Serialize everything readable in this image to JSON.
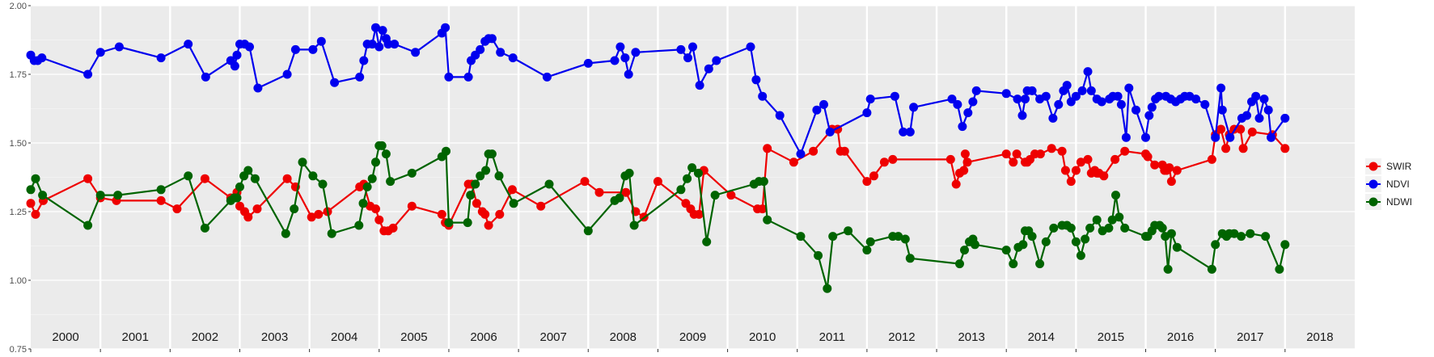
{
  "chart_data": {
    "type": "line",
    "title": "",
    "xlabel": "",
    "ylabel": "",
    "xlim": [
      2000.0,
      2019.0
    ],
    "ylim": [
      0.75,
      2.0
    ],
    "y_ticks": [
      "0.75",
      "1.00",
      "1.25",
      "1.50",
      "1.75",
      "2.00"
    ],
    "x_tick_labels": [
      "2000",
      "2001",
      "2002",
      "2003",
      "2004",
      "2005",
      "2006",
      "2007",
      "2008",
      "2009",
      "2010",
      "2011",
      "2012",
      "2013",
      "2014",
      "2015",
      "2016",
      "2017",
      "2018"
    ],
    "grid": true,
    "legend_position": "right",
    "series": [
      {
        "name": "SWIR",
        "color": "#ee0000",
        "x": [
          2000.0,
          2000.07,
          2000.18,
          2000.82,
          2001.0,
          2001.23,
          2001.87,
          2002.1,
          2002.5,
          2002.87,
          2002.96,
          2003.0,
          2003.07,
          2003.12,
          2003.25,
          2003.68,
          2003.8,
          2004.03,
          2004.13,
          2004.26,
          2004.72,
          2004.78,
          2004.87,
          2004.95,
          2005.0,
          2005.07,
          2005.13,
          2005.2,
          2005.47,
          2005.9,
          2005.95,
          2006.0,
          2006.28,
          2006.33,
          2006.4,
          2006.48,
          2006.52,
          2006.57,
          2006.73,
          2006.91,
          2007.32,
          2007.95,
          2008.16,
          2008.54,
          2008.68,
          2008.8,
          2009.0,
          2009.4,
          2009.47,
          2009.52,
          2009.59,
          2009.66,
          2010.05,
          2010.43,
          2010.5,
          2010.57,
          2010.95,
          2011.23,
          2011.5,
          2011.58,
          2011.62,
          2011.68,
          2012.0,
          2012.1,
          2012.25,
          2012.37,
          2013.2,
          2013.28,
          2013.33,
          2013.39,
          2013.41,
          2013.44,
          2014.0,
          2014.1,
          2014.15,
          2014.27,
          2014.3,
          2014.34,
          2014.41,
          2014.49,
          2014.65,
          2014.8,
          2014.85,
          2014.93,
          2015.0,
          2015.07,
          2015.17,
          2015.22,
          2015.27,
          2015.3,
          2015.33,
          2015.4,
          2015.56,
          2015.7,
          2016.0,
          2016.03,
          2016.13,
          2016.24,
          2016.27,
          2016.3,
          2016.34,
          2016.37,
          2016.45,
          2016.95,
          2017.0,
          2017.08,
          2017.15,
          2017.2,
          2017.27,
          2017.36,
          2017.4,
          2017.53,
          2017.82,
          2018.0
        ],
        "values": [
          1.28,
          1.24,
          1.29,
          1.37,
          1.3,
          1.29,
          1.29,
          1.26,
          1.37,
          1.3,
          1.32,
          1.27,
          1.25,
          1.23,
          1.26,
          1.37,
          1.34,
          1.23,
          1.24,
          1.25,
          1.34,
          1.35,
          1.27,
          1.26,
          1.22,
          1.18,
          1.18,
          1.19,
          1.27,
          1.24,
          1.21,
          1.2,
          1.35,
          1.35,
          1.28,
          1.25,
          1.24,
          1.2,
          1.24,
          1.33,
          1.27,
          1.36,
          1.32,
          1.32,
          1.25,
          1.23,
          1.36,
          1.28,
          1.26,
          1.24,
          1.24,
          1.4,
          1.31,
          1.26,
          1.26,
          1.48,
          1.43,
          1.47,
          1.55,
          1.55,
          1.47,
          1.47,
          1.36,
          1.38,
          1.43,
          1.44,
          1.44,
          1.35,
          1.39,
          1.4,
          1.46,
          1.43,
          1.46,
          1.43,
          1.46,
          1.43,
          1.43,
          1.44,
          1.46,
          1.46,
          1.48,
          1.47,
          1.4,
          1.36,
          1.4,
          1.43,
          1.44,
          1.39,
          1.4,
          1.39,
          1.39,
          1.38,
          1.44,
          1.47,
          1.46,
          1.45,
          1.42,
          1.42,
          1.4,
          1.4,
          1.41,
          1.36,
          1.4,
          1.44,
          1.53,
          1.55,
          1.48,
          1.53,
          1.55,
          1.55,
          1.48,
          1.54,
          1.53,
          1.48
        ]
      },
      {
        "name": "NDVI",
        "color": "#0000ee",
        "x": [
          2000.0,
          2000.05,
          2000.1,
          2000.16,
          2000.82,
          2001.0,
          2001.27,
          2001.87,
          2002.26,
          2002.51,
          2002.87,
          2002.93,
          2002.96,
          2003.0,
          2003.07,
          2003.14,
          2003.26,
          2003.68,
          2003.8,
          2004.05,
          2004.17,
          2004.36,
          2004.72,
          2004.78,
          2004.83,
          2004.9,
          2004.95,
          2005.0,
          2005.05,
          2005.1,
          2005.13,
          2005.22,
          2005.52,
          2005.9,
          2005.95,
          2006.0,
          2006.28,
          2006.32,
          2006.38,
          2006.45,
          2006.52,
          2006.57,
          2006.62,
          2006.74,
          2006.92,
          2007.41,
          2008.0,
          2008.38,
          2008.46,
          2008.53,
          2008.58,
          2008.68,
          2009.33,
          2009.43,
          2009.5,
          2009.6,
          2009.73,
          2009.84,
          2010.33,
          2010.41,
          2010.5,
          2010.75,
          2011.05,
          2011.28,
          2011.38,
          2011.47,
          2012.0,
          2012.05,
          2012.4,
          2012.52,
          2012.62,
          2012.67,
          2013.22,
          2013.3,
          2013.37,
          2013.45,
          2013.52,
          2013.57,
          2014.0,
          2014.16,
          2014.23,
          2014.27,
          2014.3,
          2014.37,
          2014.48,
          2014.57,
          2014.67,
          2014.75,
          2014.82,
          2014.87,
          2014.93,
          2015.0,
          2015.09,
          2015.17,
          2015.22,
          2015.3,
          2015.37,
          2015.48,
          2015.53,
          2015.6,
          2015.65,
          2015.72,
          2015.76,
          2015.86,
          2016.0,
          2016.05,
          2016.09,
          2016.14,
          2016.19,
          2016.29,
          2016.36,
          2016.43,
          2016.5,
          2016.56,
          2016.63,
          2016.72,
          2016.85,
          2017.0,
          2017.08,
          2017.1,
          2017.21,
          2017.38,
          2017.45,
          2017.52,
          2017.58,
          2017.63,
          2017.7,
          2017.76,
          2017.8,
          2018.0
        ],
        "values": [
          1.82,
          1.8,
          1.8,
          1.81,
          1.75,
          1.83,
          1.85,
          1.81,
          1.86,
          1.74,
          1.8,
          1.78,
          1.82,
          1.86,
          1.86,
          1.85,
          1.7,
          1.75,
          1.84,
          1.84,
          1.87,
          1.72,
          1.74,
          1.8,
          1.86,
          1.86,
          1.92,
          1.85,
          1.91,
          1.88,
          1.86,
          1.86,
          1.83,
          1.9,
          1.92,
          1.74,
          1.74,
          1.8,
          1.82,
          1.84,
          1.87,
          1.88,
          1.88,
          1.83,
          1.81,
          1.74,
          1.79,
          1.8,
          1.85,
          1.81,
          1.75,
          1.83,
          1.84,
          1.81,
          1.85,
          1.71,
          1.77,
          1.8,
          1.85,
          1.73,
          1.67,
          1.6,
          1.46,
          1.62,
          1.64,
          1.54,
          1.61,
          1.66,
          1.67,
          1.54,
          1.54,
          1.63,
          1.66,
          1.64,
          1.56,
          1.61,
          1.65,
          1.69,
          1.68,
          1.66,
          1.6,
          1.66,
          1.69,
          1.69,
          1.66,
          1.67,
          1.59,
          1.64,
          1.69,
          1.71,
          1.65,
          1.67,
          1.69,
          1.76,
          1.69,
          1.66,
          1.65,
          1.66,
          1.67,
          1.67,
          1.64,
          1.52,
          1.7,
          1.62,
          1.52,
          1.6,
          1.63,
          1.66,
          1.67,
          1.67,
          1.66,
          1.65,
          1.66,
          1.67,
          1.67,
          1.66,
          1.64,
          1.52,
          1.7,
          1.62,
          1.52,
          1.59,
          1.6,
          1.65,
          1.67,
          1.59,
          1.66,
          1.62,
          1.52,
          1.59
        ]
      },
      {
        "name": "NDWI",
        "color": "#006400",
        "x": [
          2000.0,
          2000.07,
          2000.17,
          2000.82,
          2001.0,
          2001.25,
          2001.87,
          2002.26,
          2002.5,
          2002.87,
          2002.92,
          2002.96,
          2003.0,
          2003.06,
          2003.12,
          2003.22,
          2003.66,
          2003.78,
          2003.9,
          2004.05,
          2004.19,
          2004.32,
          2004.71,
          2004.77,
          2004.83,
          2004.9,
          2004.95,
          2005.0,
          2005.04,
          2005.1,
          2005.16,
          2005.47,
          2005.9,
          2005.96,
          2006.0,
          2006.27,
          2006.31,
          2006.38,
          2006.45,
          2006.53,
          2006.57,
          2006.62,
          2006.72,
          2006.93,
          2007.44,
          2008.0,
          2008.38,
          2008.45,
          2008.53,
          2008.59,
          2008.66,
          2009.33,
          2009.42,
          2009.49,
          2009.58,
          2009.7,
          2009.82,
          2010.38,
          2010.45,
          2010.52,
          2010.57,
          2011.05,
          2011.3,
          2011.43,
          2011.51,
          2011.73,
          2012.0,
          2012.05,
          2012.37,
          2012.45,
          2012.55,
          2012.62,
          2013.33,
          2013.4,
          2013.47,
          2013.52,
          2013.55,
          2014.0,
          2014.1,
          2014.17,
          2014.24,
          2014.27,
          2014.32,
          2014.37,
          2014.48,
          2014.57,
          2014.68,
          2014.8,
          2014.87,
          2014.93,
          2015.0,
          2015.07,
          2015.13,
          2015.2,
          2015.3,
          2015.38,
          2015.47,
          2015.52,
          2015.57,
          2015.62,
          2015.7,
          2016.0,
          2016.03,
          2016.09,
          2016.13,
          2016.2,
          2016.24,
          2016.28,
          2016.32,
          2016.37,
          2016.45,
          2016.95,
          2017.0,
          2017.1,
          2017.16,
          2017.2,
          2017.27,
          2017.37,
          2017.5,
          2017.72,
          2017.92,
          2018.0
        ],
        "values": [
          1.33,
          1.37,
          1.31,
          1.2,
          1.31,
          1.31,
          1.33,
          1.38,
          1.19,
          1.29,
          1.3,
          1.3,
          1.34,
          1.38,
          1.4,
          1.37,
          1.17,
          1.26,
          1.43,
          1.38,
          1.35,
          1.17,
          1.2,
          1.28,
          1.34,
          1.37,
          1.43,
          1.49,
          1.49,
          1.46,
          1.36,
          1.39,
          1.45,
          1.47,
          1.21,
          1.21,
          1.31,
          1.35,
          1.38,
          1.4,
          1.46,
          1.46,
          1.38,
          1.28,
          1.35,
          1.18,
          1.29,
          1.3,
          1.38,
          1.39,
          1.2,
          1.33,
          1.37,
          1.41,
          1.39,
          1.14,
          1.31,
          1.35,
          1.36,
          1.36,
          1.22,
          1.16,
          1.09,
          0.97,
          1.16,
          1.18,
          1.11,
          1.14,
          1.16,
          1.16,
          1.15,
          1.08,
          1.06,
          1.11,
          1.14,
          1.15,
          1.13,
          1.11,
          1.06,
          1.12,
          1.13,
          1.18,
          1.18,
          1.16,
          1.06,
          1.14,
          1.19,
          1.2,
          1.2,
          1.19,
          1.14,
          1.09,
          1.15,
          1.19,
          1.22,
          1.18,
          1.19,
          1.22,
          1.31,
          1.23,
          1.19,
          1.16,
          1.16,
          1.18,
          1.2,
          1.2,
          1.19,
          1.16,
          1.04,
          1.17,
          1.12,
          1.04,
          1.13,
          1.17,
          1.16,
          1.17,
          1.17,
          1.16,
          1.17,
          1.16,
          1.04,
          1.13
        ]
      }
    ]
  }
}
